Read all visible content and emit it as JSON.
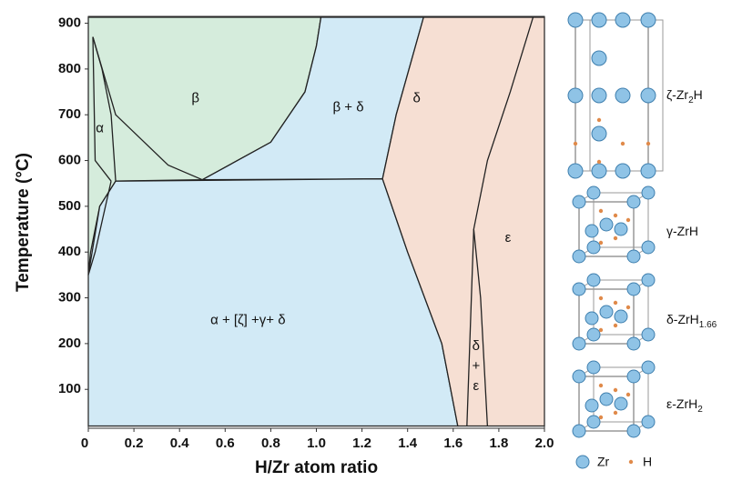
{
  "chart_data": {
    "type": "phase-diagram",
    "x_label": "H/Zr atom ratio",
    "y_label": "Temperature (°C)",
    "xlim": [
      0,
      2.0
    ],
    "ylim": [
      15,
      915
    ],
    "xticks": [
      0,
      0.2,
      0.4,
      0.6,
      0.8,
      {
        "value": 1.0,
        "label": "1.0"
      },
      1.2,
      1.4,
      1.6,
      1.8,
      {
        "value": 2.0,
        "label": "2.0"
      }
    ],
    "yticks": [
      100,
      200,
      300,
      400,
      500,
      600,
      700,
      800,
      900
    ],
    "regions": [
      {
        "name": "β",
        "color": "#d5ecdc",
        "x": [
          0,
          1.02,
          1.0,
          0.95,
          0.8,
          0.5,
          0.12,
          0.05,
          0.01,
          0
        ],
        "y": [
          913,
          913,
          850,
          750,
          640,
          558,
          555,
          500,
          400,
          350
        ]
      },
      {
        "name": "β + δ",
        "color": "#d2eaf6",
        "x": [
          1.02,
          1.47,
          1.35,
          1.29,
          0.5,
          0.8,
          0.95,
          1.0
        ],
        "y": [
          913,
          913,
          700,
          560,
          558,
          640,
          750,
          850
        ]
      },
      {
        "name": "α + [ζ] +γ+ δ",
        "color": "#d2eaf6",
        "x": [
          0.12,
          1.29,
          1.4,
          1.55,
          1.62,
          0,
          0,
          0.05
        ],
        "y": [
          555,
          560,
          400,
          200,
          20,
          20,
          350,
          500
        ]
      },
      {
        "name": "δ",
        "color": "#f6dfd3",
        "x": [
          1.47,
          2.0,
          2.0,
          1.62,
          1.55,
          1.4,
          1.29,
          1.35
        ],
        "y": [
          913,
          913,
          20,
          20,
          200,
          400,
          560,
          700
        ]
      }
    ],
    "boundaries": [
      {
        "x": [
          0.02,
          0.06,
          0.1,
          0.12
        ],
        "y": [
          870,
          800,
          700,
          555
        ]
      },
      {
        "x": [
          0.02,
          0.12,
          0.35,
          0.5
        ],
        "y": [
          870,
          700,
          590,
          558
        ]
      },
      {
        "x": [
          0.02,
          0.03,
          0.1
        ],
        "y": [
          870,
          600,
          555
        ]
      },
      {
        "x": [
          0.1,
          0.03,
          0.0
        ],
        "y": [
          555,
          400,
          350
        ]
      },
      {
        "x": [
          1.95,
          1.85,
          1.75,
          1.69,
          1.66
        ],
        "y": [
          913,
          750,
          600,
          450,
          20
        ]
      },
      {
        "x": [
          1.69,
          1.72,
          1.75
        ],
        "y": [
          450,
          300,
          20
        ]
      }
    ],
    "annotations": [
      "α",
      "ε",
      "δ\n+\nε"
    ],
    "structures": [
      {
        "base": "ζ-Zr",
        "sub": "2",
        "tail": "H"
      },
      {
        "base": "γ-ZrH",
        "sub": "",
        "tail": ""
      },
      {
        "base": "δ-ZrH",
        "sub": "1.66",
        "tail": ""
      },
      {
        "base": "ε-ZrH",
        "sub": "2",
        "tail": ""
      }
    ],
    "legend": [
      "Zr",
      "H"
    ]
  }
}
